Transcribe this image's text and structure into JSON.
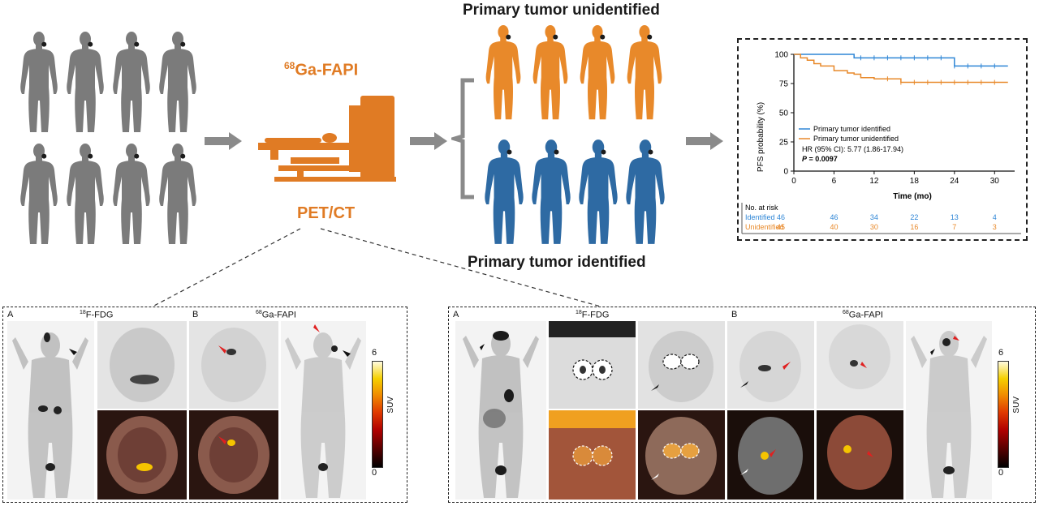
{
  "header": {
    "title_unidentified": "Primary tumor unidentified",
    "title_identified": "Primary tumor identified",
    "tracer_sup": "68",
    "tracer_name": "Ga-FAPI",
    "modality": "PET/CT"
  },
  "colors": {
    "gray_figure": "#7b7b7b",
    "orange": "#e8892a",
    "blue": "#2e6aa3",
    "scanner": "#e07b24",
    "arrow": "#8a8a8a"
  },
  "km": {
    "ylabel": "PFS probability (%)",
    "xlabel": "Time (mo)",
    "yticks": [
      "0",
      "25",
      "50",
      "75",
      "100"
    ],
    "xticks": [
      "0",
      "6",
      "12",
      "18",
      "24",
      "30"
    ],
    "legend": [
      "Primary tumor identified",
      "Primary tumor unidentified"
    ],
    "hr_text": "HR (95% CI): 5.77 (1.86-17.94)",
    "p_label": "P",
    "p_value": " = 0.0097",
    "risk_title": "No. at risk",
    "risk_rows": [
      {
        "label": "Identified",
        "values": [
          "46",
          "46",
          "34",
          "22",
          "13",
          "4"
        ]
      },
      {
        "label": "Unidentified",
        "values": [
          "45",
          "40",
          "30",
          "16",
          "7",
          "3"
        ]
      }
    ]
  },
  "chart_data": {
    "type": "line",
    "xlabel": "Time (mo)",
    "ylabel": "PFS probability (%)",
    "xlim": [
      0,
      33
    ],
    "ylim": [
      0,
      100
    ],
    "series": [
      {
        "name": "Primary tumor identified",
        "x": [
          0,
          9,
          9,
          24,
          24,
          32
        ],
        "y": [
          100,
          100,
          97,
          97,
          90,
          90
        ]
      },
      {
        "name": "Primary tumor unidentified",
        "x": [
          0,
          1,
          2,
          3,
          4,
          6,
          6,
          8,
          9,
          10,
          10,
          12,
          16,
          16,
          32
        ],
        "y": [
          100,
          97,
          95,
          92,
          90,
          88,
          86,
          84,
          83,
          82,
          80,
          79,
          79,
          76,
          76
        ]
      }
    ]
  },
  "panel_left": {
    "label_a": "A",
    "label_b": "B",
    "fdg_sup": "18",
    "fdg_name": "F-FDG",
    "fapi_sup": "68",
    "fapi_name": "Ga-FAPI",
    "scale_max": "6",
    "scale_min": "0",
    "scale_unit": "SUV"
  },
  "panel_right": {
    "label_a": "A",
    "label_b": "B",
    "fdg_sup": "18",
    "fdg_name": "F-FDG",
    "fapi_sup": "68",
    "fapi_name": "Ga-FAPI",
    "scale_max": "6",
    "scale_min": "0",
    "scale_unit": "SUV"
  }
}
